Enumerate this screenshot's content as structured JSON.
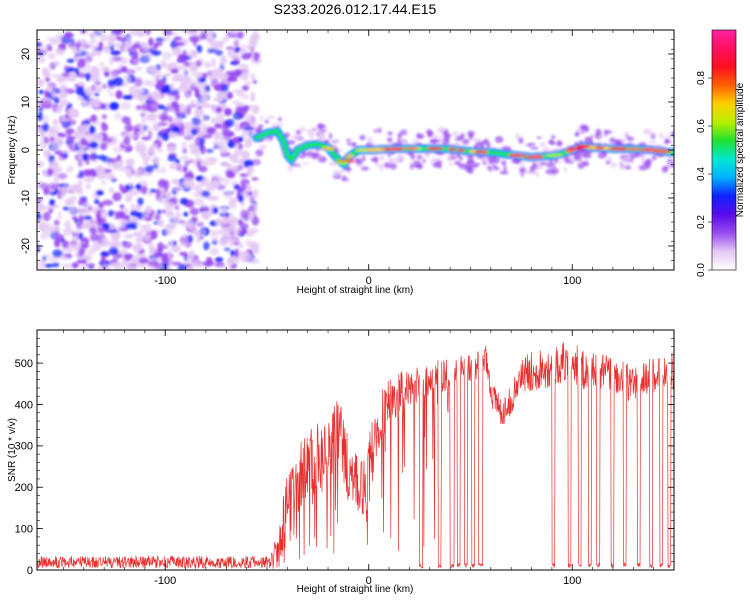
{
  "page_title": "S233.2026.012.17.44.E15",
  "chart_data": [
    {
      "type": "heatmap",
      "title": "S233.2026.012.17.44.E15",
      "xlabel": "Height of straight line (km)",
      "ylabel": "Frequency (Hz)",
      "xlim": [
        -163,
        150
      ],
      "ylim": [
        -25,
        25
      ],
      "xticks": [
        -100,
        0,
        100
      ],
      "xtick_labels": [
        "-100",
        "0",
        "100"
      ],
      "yticks": [
        -20,
        -10,
        0,
        10,
        20
      ],
      "ytick_labels": [
        "-20",
        "-10",
        "0",
        "10",
        "20"
      ],
      "noise_region": {
        "x_from": -163,
        "x_to": -55,
        "description": "broadband noise"
      },
      "ridge": {
        "x": [
          -55,
          -50,
          -45,
          -42,
          -40,
          -38,
          -35,
          -30,
          -25,
          -20,
          -15,
          -12,
          -10,
          -5,
          0,
          10,
          20,
          30,
          40,
          50,
          60,
          70,
          80,
          90,
          95,
          100,
          105,
          110,
          120,
          130,
          140,
          148
        ],
        "y": [
          2.5,
          3.5,
          4,
          2,
          -1,
          -2,
          0,
          1,
          1.2,
          0.5,
          -2,
          -3,
          -1.5,
          0,
          0,
          0.2,
          0.3,
          0.3,
          0.2,
          -0.3,
          -0.5,
          -1,
          -1.5,
          -1.2,
          -0.8,
          0,
          0.8,
          0.5,
          0.3,
          0.2,
          0,
          -0.5
        ]
      },
      "colorbar": {
        "label": "Normalized spectral amplitude",
        "range": [
          0.0,
          1.0
        ],
        "ticks": [
          0.0,
          0.2,
          0.4,
          0.6,
          0.8
        ],
        "tick_labels": [
          "0.0",
          "0.2",
          "0.4",
          "0.6",
          "0.8"
        ],
        "colors": [
          "#ffffff",
          "#e4c8f4",
          "#9a4cf0",
          "#5a0ae8",
          "#1020ff",
          "#00b0ff",
          "#00e8d0",
          "#20e030",
          "#b8f000",
          "#ffd000",
          "#ff6000",
          "#ff1020",
          "#ff1060",
          "#ff20a0"
        ]
      },
      "grid": false
    },
    {
      "type": "line",
      "xlabel": "Height of straight line (km)",
      "ylabel": "SNR (10 * v/v)",
      "xlim": [
        -163,
        150
      ],
      "ylim": [
        0,
        580
      ],
      "xticks": [
        -100,
        0,
        100
      ],
      "xtick_labels": [
        "-100",
        "0",
        "100"
      ],
      "yticks": [
        0,
        100,
        200,
        300,
        400,
        500
      ],
      "ytick_labels": [
        "0",
        "100",
        "200",
        "300",
        "400",
        "500"
      ],
      "series": [
        {
          "name": "SNR",
          "color": "#e83030",
          "x": [
            -163,
            -50,
            -45,
            -40,
            -35,
            -30,
            -25,
            -20,
            -15,
            -10,
            -5,
            0,
            5,
            10,
            15,
            20,
            25,
            30,
            35,
            40,
            45,
            50,
            55,
            58,
            60,
            65,
            70,
            75,
            80,
            85,
            90,
            95,
            100,
            105,
            110,
            115,
            120,
            125,
            130,
            135,
            140,
            145,
            150
          ],
          "values": [
            20,
            22,
            50,
            140,
            210,
            260,
            280,
            270,
            340,
            250,
            180,
            240,
            360,
            410,
            430,
            440,
            450,
            460,
            470,
            470,
            480,
            480,
            500,
            520,
            430,
            380,
            410,
            470,
            480,
            490,
            490,
            500,
            510,
            480,
            490,
            480,
            470,
            460,
            450,
            460,
            470,
            480,
            480
          ],
          "noise": [
            14,
            14,
            60,
            90,
            90,
            80,
            80,
            80,
            90,
            90,
            80,
            90,
            70,
            60,
            50,
            45,
            45,
            40,
            40,
            40,
            40,
            40,
            40,
            40,
            40,
            35,
            35,
            40,
            50,
            50,
            50,
            50,
            50,
            50,
            45,
            45,
            45,
            45,
            45,
            45,
            45,
            45,
            45
          ],
          "dropouts": [
            [
              25,
              26.5
            ],
            [
              34,
              35.5
            ],
            [
              40,
              42
            ],
            [
              43.5,
              45
            ],
            [
              47,
              48.5
            ],
            [
              50.5,
              52
            ],
            [
              54,
              56
            ],
            [
              90,
              91.5
            ],
            [
              98,
              99.5
            ],
            [
              103,
              104.5
            ],
            [
              108,
              109.5
            ],
            [
              112,
              113.5
            ],
            [
              119,
              120.5
            ],
            [
              125,
              126.5
            ],
            [
              132,
              133.5
            ],
            [
              138,
              139.5
            ],
            [
              143,
              144.5
            ],
            [
              147,
              148.5
            ]
          ]
        }
      ],
      "grid": false
    }
  ]
}
